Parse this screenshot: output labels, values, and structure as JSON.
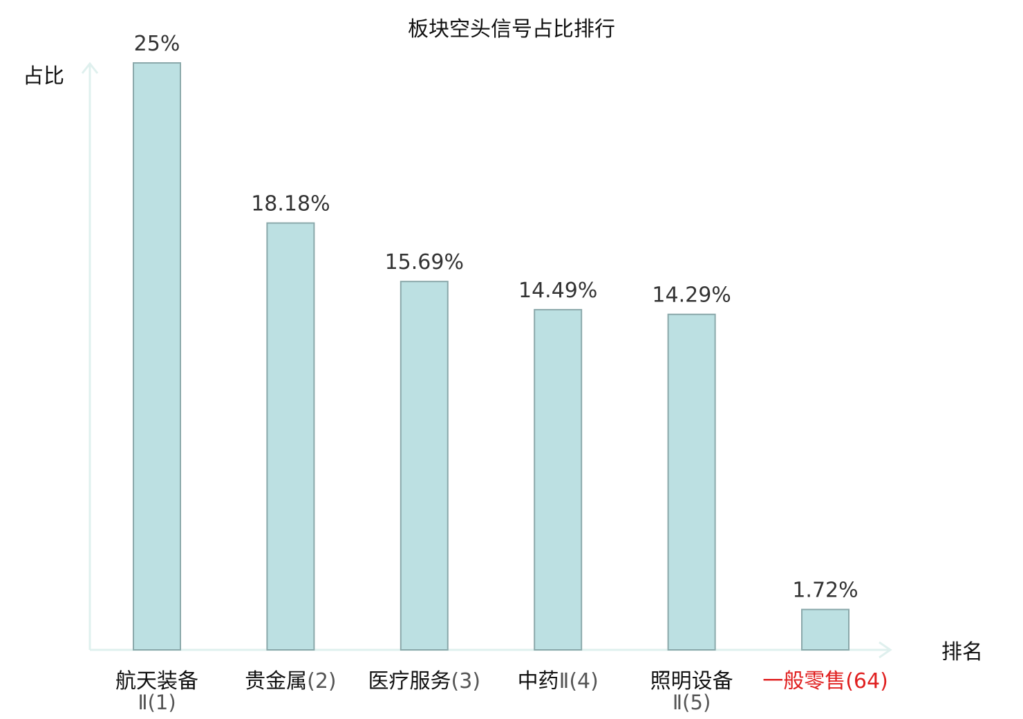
{
  "chart_data": {
    "type": "bar",
    "title": "板块空头信号占比排行",
    "ylabel": "占比",
    "xlabel": "排名",
    "categories": [
      {
        "name": "航天装备",
        "rank": "Ⅱ(1)",
        "highlight": false
      },
      {
        "name": "贵金属",
        "rank": "(2)",
        "highlight": false
      },
      {
        "name": "医疗服务",
        "rank": "(3)",
        "highlight": false
      },
      {
        "name": "中药",
        "rank": "Ⅱ(4)",
        "highlight": false
      },
      {
        "name": "照明设备",
        "rank": "Ⅱ(5)",
        "highlight": false
      },
      {
        "name": "一般零售",
        "rank": "(64)",
        "highlight": true
      }
    ],
    "values": [
      25,
      18.18,
      15.69,
      14.49,
      14.29,
      1.72
    ],
    "value_labels": [
      "25%",
      "18.18%",
      "15.69%",
      "14.49%",
      "14.29%",
      "1.72%"
    ],
    "ylim": [
      0,
      25
    ],
    "grid": false,
    "colors": {
      "bar_fill": "#bce0e2",
      "bar_stroke": "#8aa8aa",
      "axis": "#dff0ee",
      "text": "#333333",
      "highlight_text": "#e02020"
    }
  }
}
